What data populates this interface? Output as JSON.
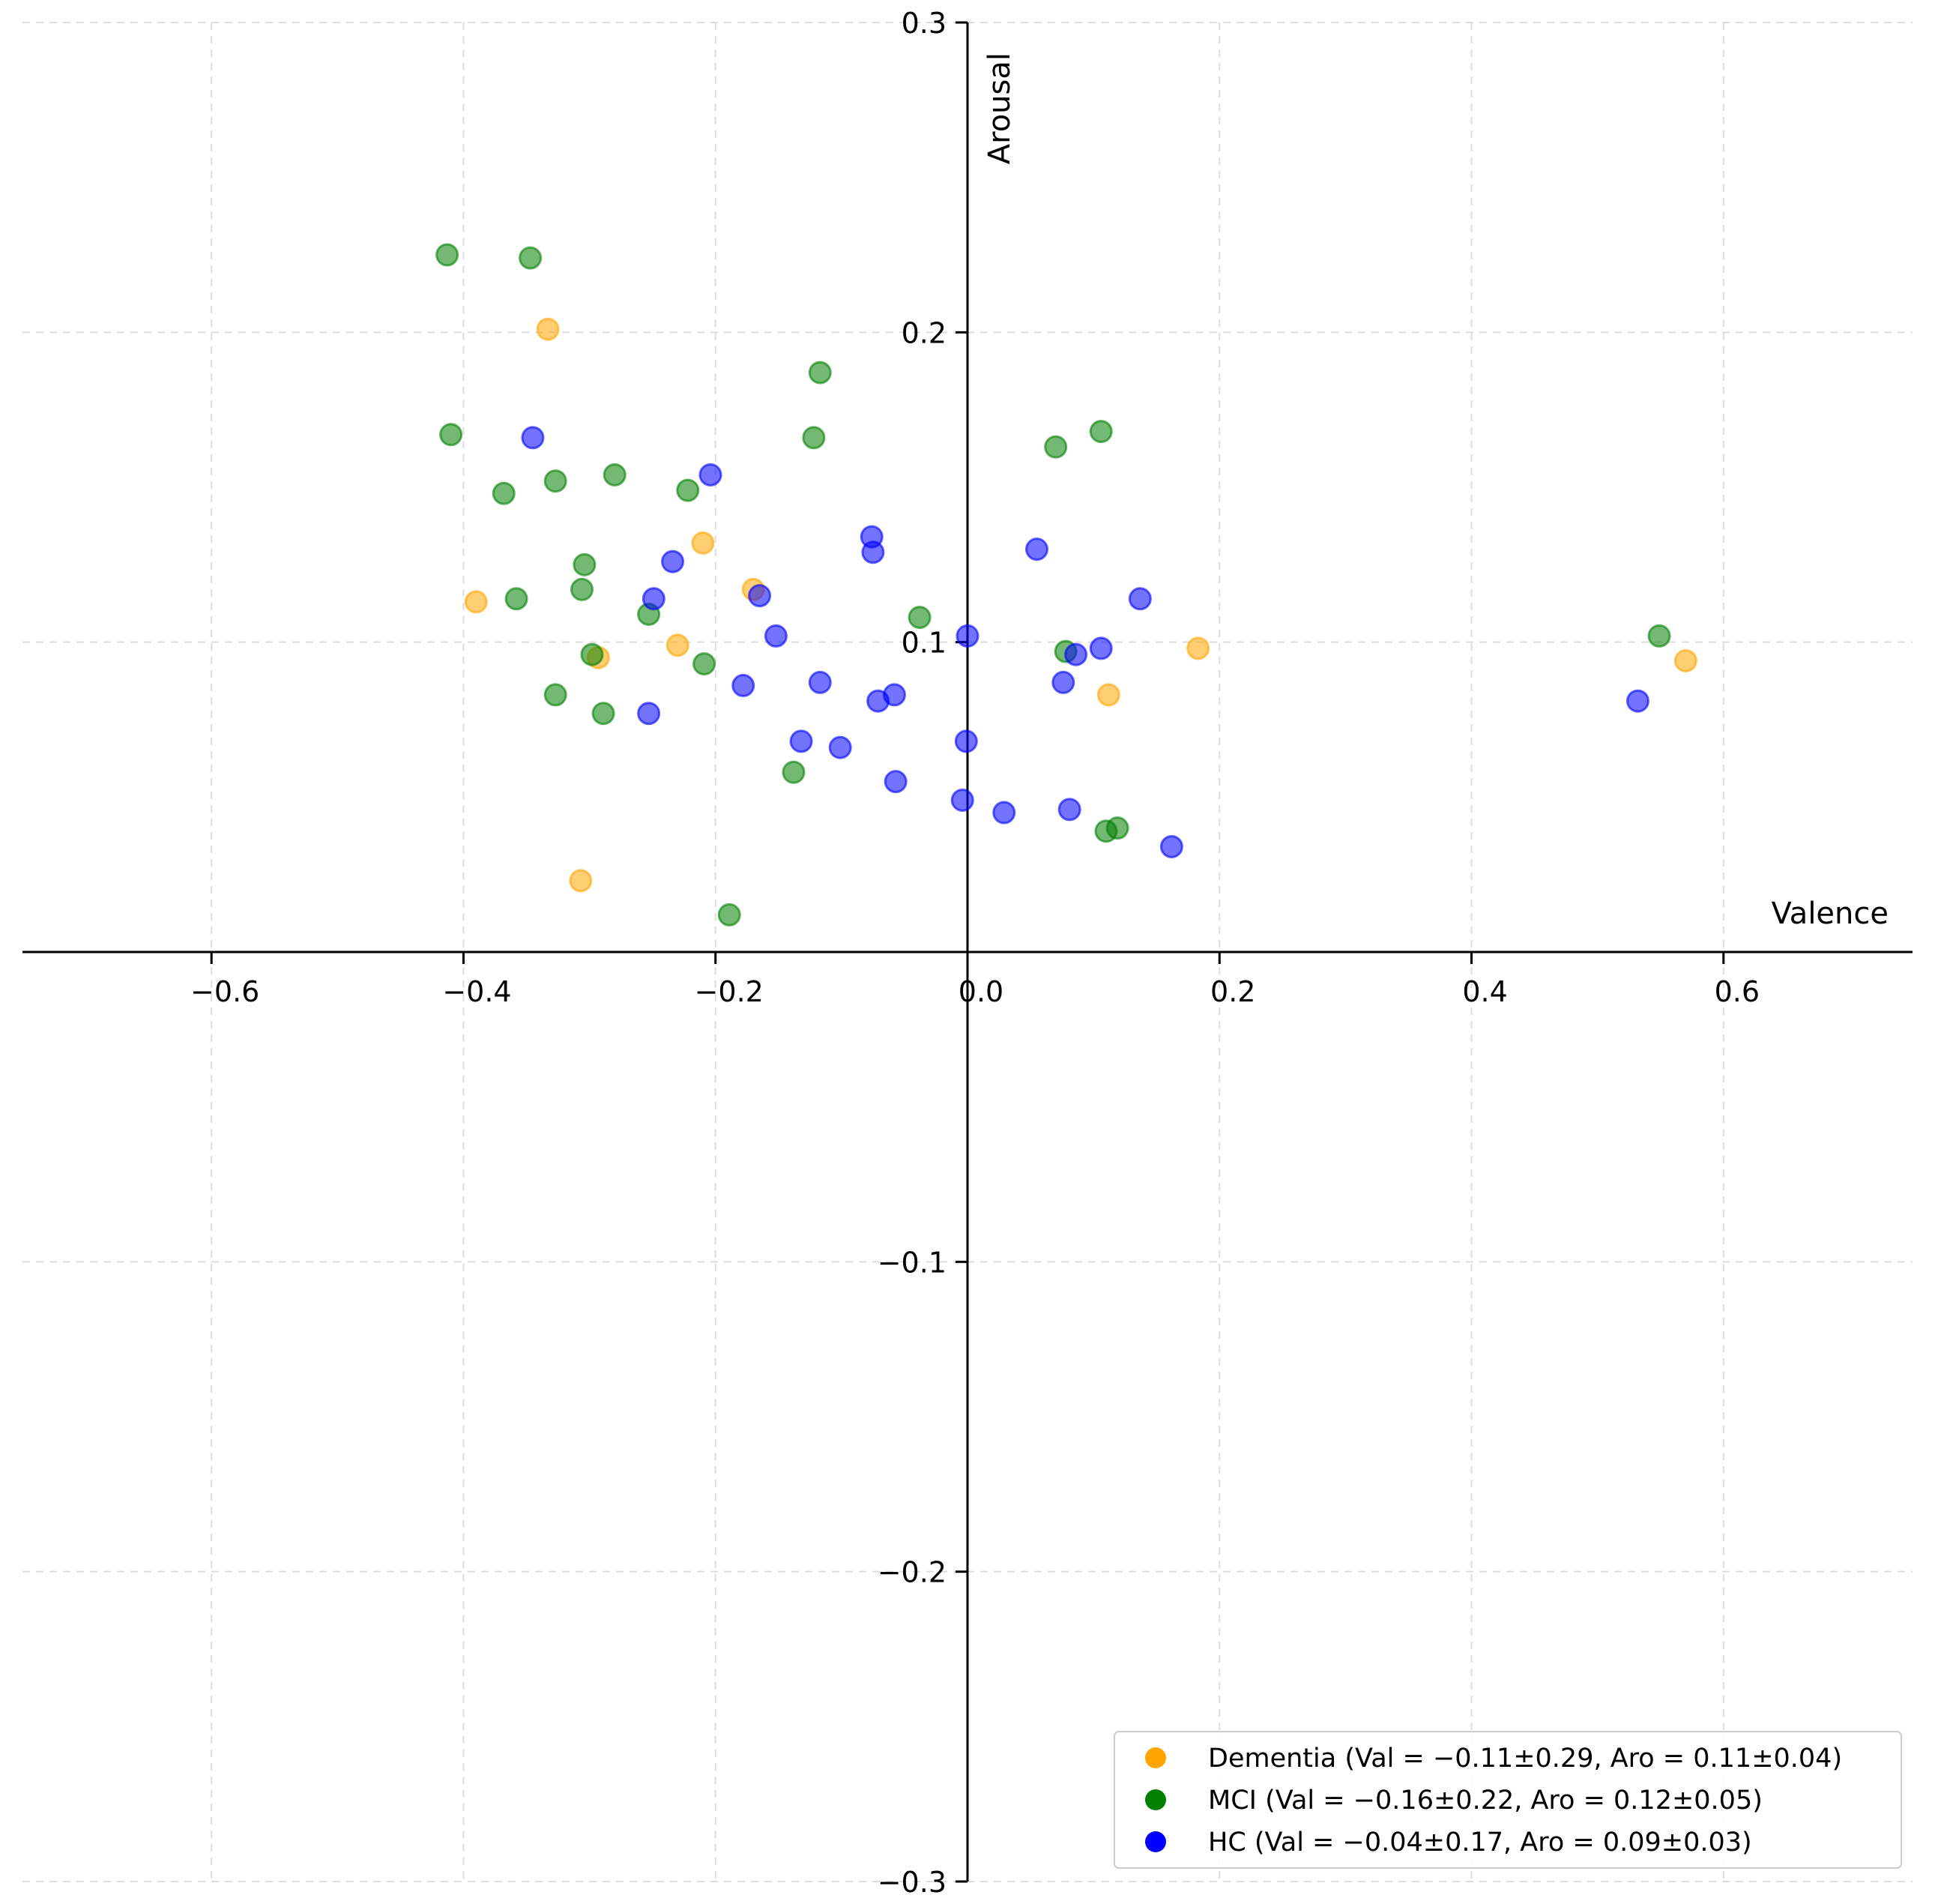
{
  "chart_data": {
    "type": "scatter",
    "title": "",
    "xlabel": "Valence",
    "ylabel": "Arousal",
    "xlim": [
      -0.75,
      0.75
    ],
    "ylim": [
      -0.3,
      0.3
    ],
    "grid": true,
    "legend_position": "bottom-right",
    "x_ticks": [
      -0.6,
      -0.4,
      -0.2,
      0.0,
      0.2,
      0.4,
      0.6
    ],
    "x_tick_labels": [
      "−0.6",
      "−0.4",
      "−0.2",
      "0.0",
      "0.2",
      "0.4",
      "0.6"
    ],
    "y_ticks": [
      0.3,
      0.2,
      0.1,
      -0.1,
      -0.2,
      -0.3
    ],
    "y_tick_labels": [
      "0.3",
      "0.2",
      "0.1",
      "−0.1",
      "−0.2",
      "−0.3"
    ],
    "series": [
      {
        "name": "Dementia",
        "label": "Dementia (Val = −0.11±0.29, Aro = 0.11±0.04)",
        "color": "#ffa500",
        "points": [
          [
            -0.333,
            0.201
          ],
          [
            -0.39,
            0.113
          ],
          [
            -0.21,
            0.132
          ],
          [
            -0.17,
            0.117
          ],
          [
            -0.23,
            0.099
          ],
          [
            -0.293,
            0.095
          ],
          [
            -0.307,
            0.023
          ],
          [
            0.112,
            0.083
          ],
          [
            0.183,
            0.098
          ],
          [
            0.57,
            0.094
          ]
        ]
      },
      {
        "name": "MCI",
        "label": "MCI (Val = −0.16±0.22, Aro = 0.12±0.05)",
        "color": "#008000",
        "points": [
          [
            -0.413,
            0.225
          ],
          [
            -0.347,
            0.224
          ],
          [
            -0.41,
            0.167
          ],
          [
            -0.368,
            0.148
          ],
          [
            -0.327,
            0.152
          ],
          [
            -0.28,
            0.154
          ],
          [
            -0.222,
            0.149
          ],
          [
            -0.304,
            0.125
          ],
          [
            -0.306,
            0.117
          ],
          [
            -0.358,
            0.114
          ],
          [
            -0.253,
            0.109
          ],
          [
            -0.298,
            0.096
          ],
          [
            -0.327,
            0.083
          ],
          [
            -0.289,
            0.077
          ],
          [
            -0.209,
            0.093
          ],
          [
            -0.117,
            0.187
          ],
          [
            -0.122,
            0.166
          ],
          [
            -0.138,
            0.058
          ],
          [
            -0.189,
            0.012
          ],
          [
            -0.038,
            0.108
          ],
          [
            0.07,
            0.163
          ],
          [
            0.106,
            0.168
          ],
          [
            0.078,
            0.097
          ],
          [
            0.11,
            0.039
          ],
          [
            0.119,
            0.04
          ],
          [
            0.549,
            0.102
          ]
        ]
      },
      {
        "name": "HC",
        "label": "HC (Val = −0.04±0.17, Aro = 0.09±0.03)",
        "color": "#0000ff",
        "points": [
          [
            -0.345,
            0.166
          ],
          [
            -0.204,
            0.154
          ],
          [
            -0.234,
            0.126
          ],
          [
            -0.249,
            0.114
          ],
          [
            -0.165,
            0.115
          ],
          [
            -0.152,
            0.102
          ],
          [
            -0.178,
            0.086
          ],
          [
            -0.253,
            0.077
          ],
          [
            -0.132,
            0.068
          ],
          [
            -0.117,
            0.087
          ],
          [
            -0.101,
            0.066
          ],
          [
            -0.076,
            0.134
          ],
          [
            -0.075,
            0.129
          ],
          [
            -0.071,
            0.081
          ],
          [
            -0.058,
            0.083
          ],
          [
            -0.057,
            0.055
          ],
          [
            0.0,
            0.102
          ],
          [
            -0.001,
            0.068
          ],
          [
            -0.004,
            0.049
          ],
          [
            0.029,
            0.045
          ],
          [
            0.055,
            0.13
          ],
          [
            0.076,
            0.087
          ],
          [
            0.086,
            0.096
          ],
          [
            0.106,
            0.098
          ],
          [
            0.081,
            0.046
          ],
          [
            0.137,
            0.114
          ],
          [
            0.162,
            0.034
          ],
          [
            0.532,
            0.081
          ]
        ]
      }
    ]
  }
}
